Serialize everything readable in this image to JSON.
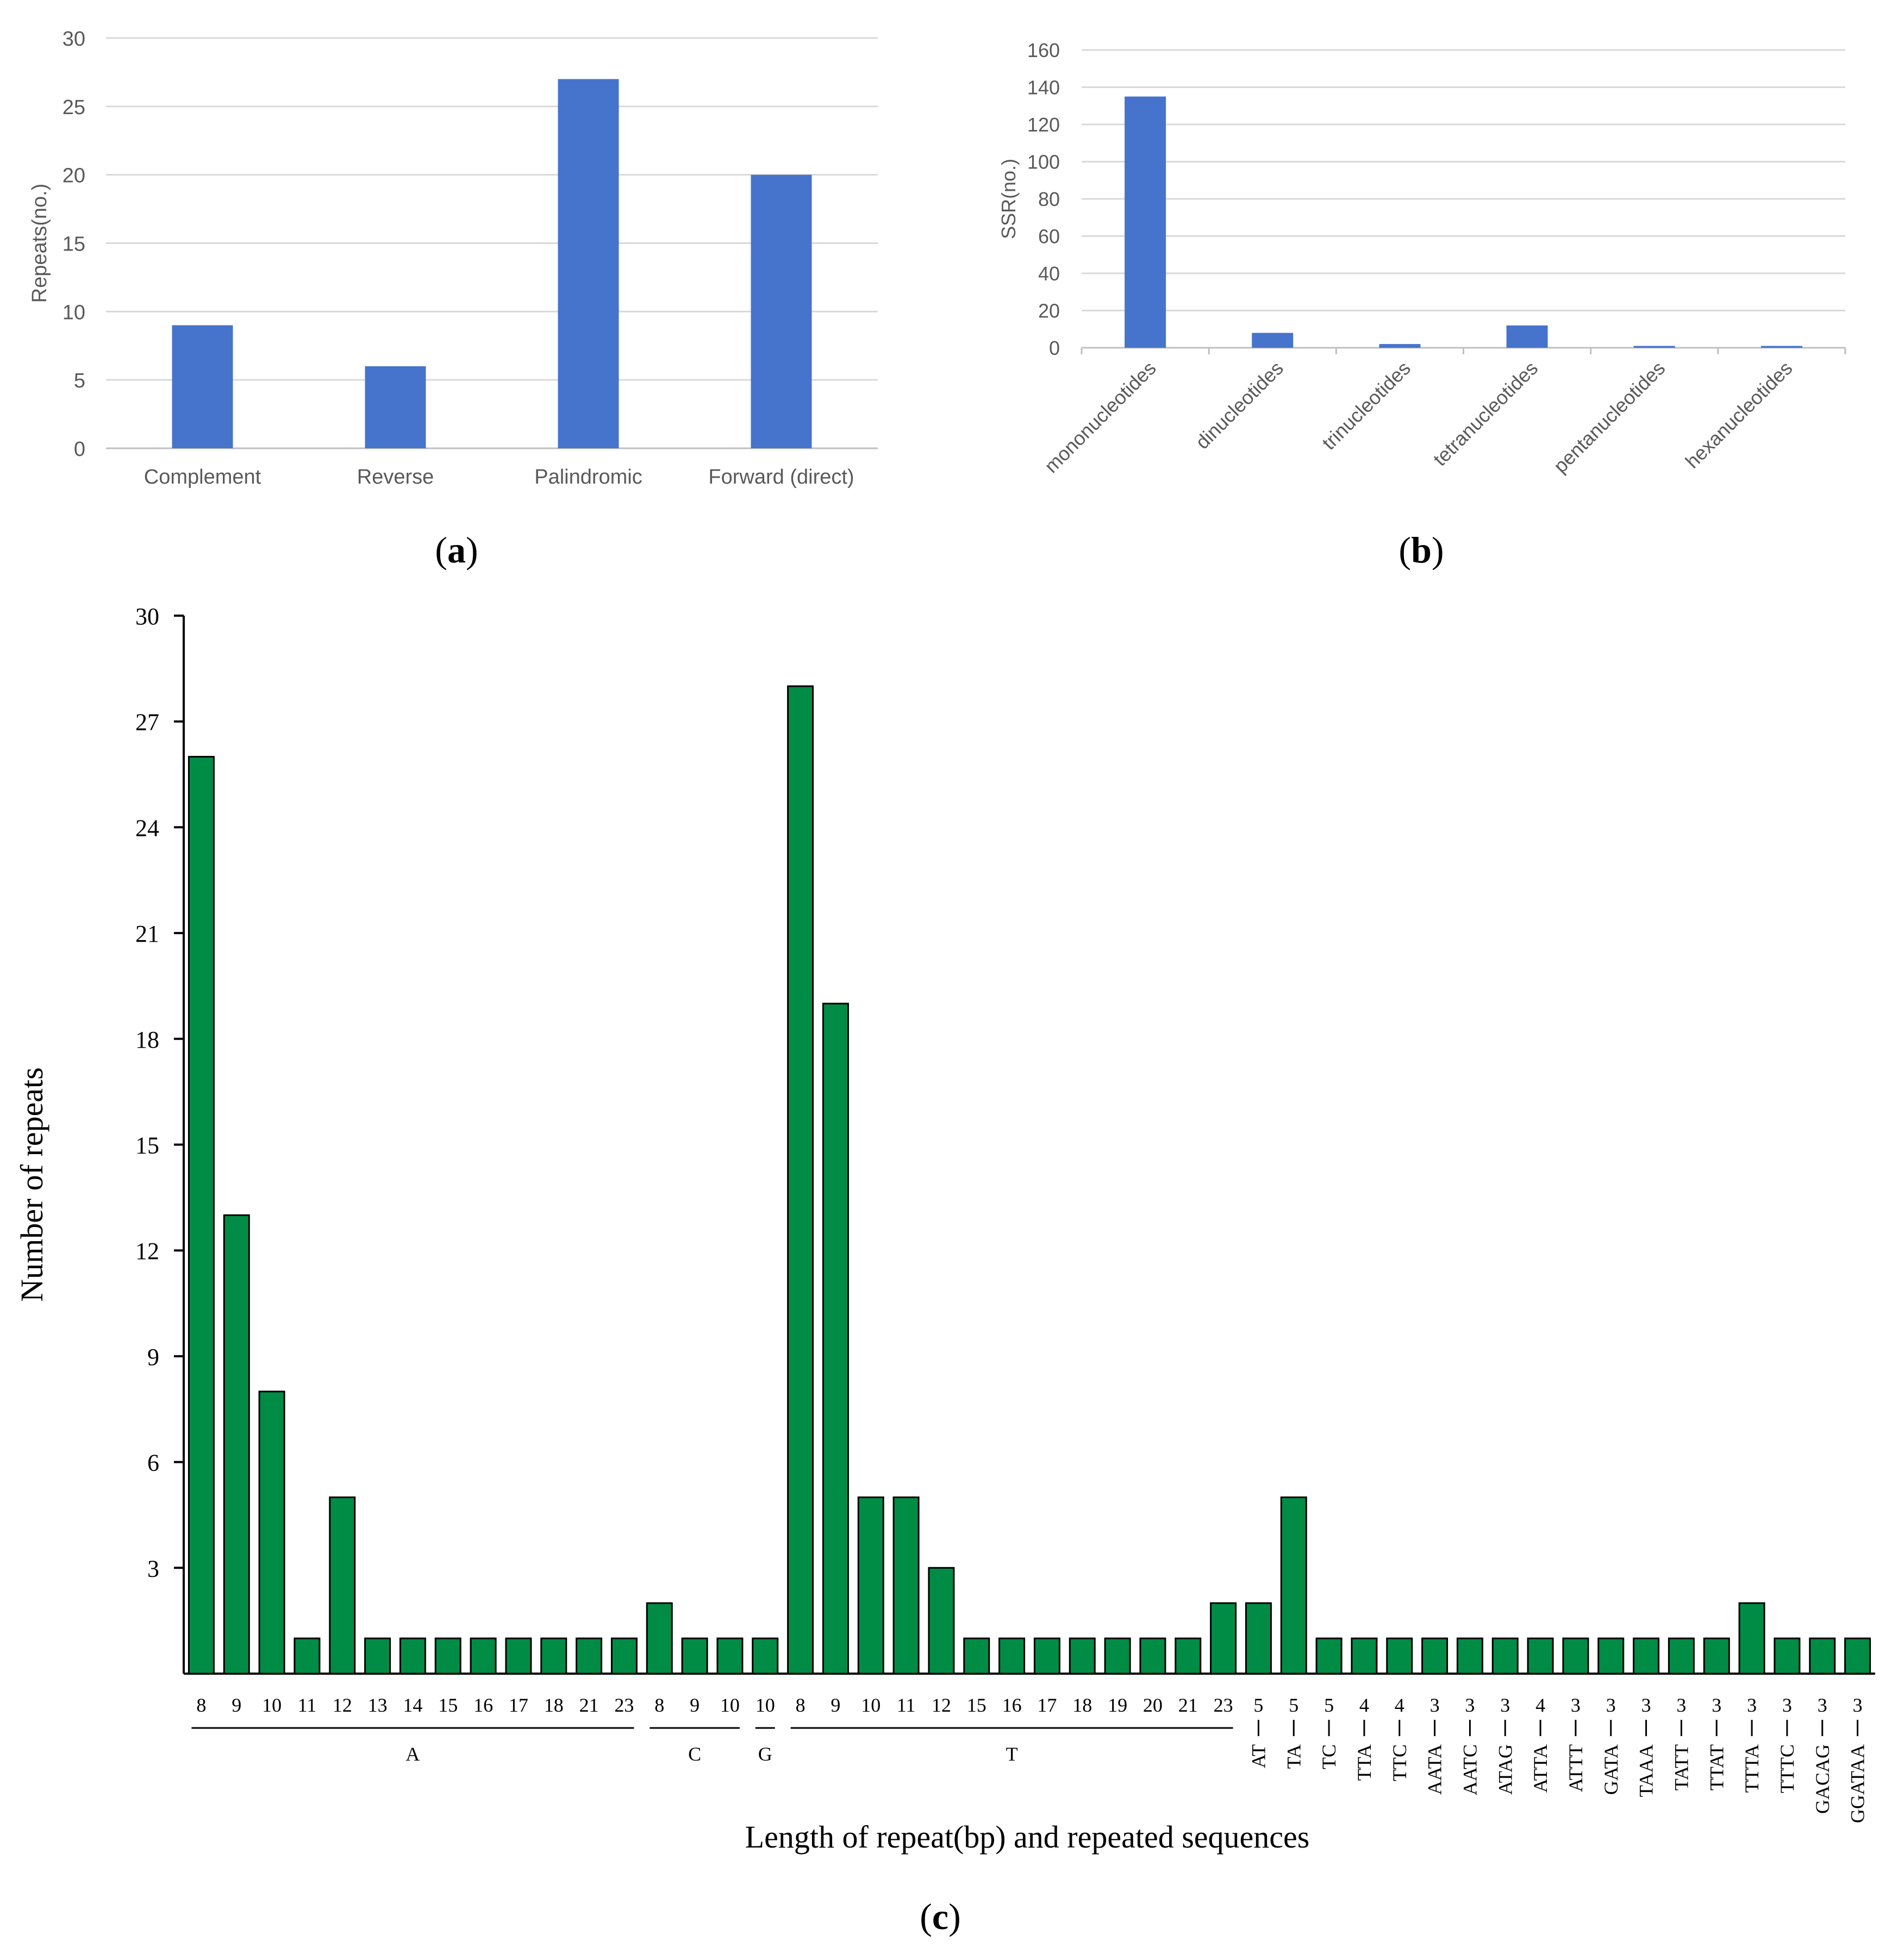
{
  "colors": {
    "blue": "#4674CC",
    "green": "#008C45",
    "grid": "#D9D9D9",
    "axis": "#000000",
    "text": "#595959"
  },
  "panel_labels": {
    "a": "a",
    "b": "b",
    "c": "c"
  },
  "chart_data": [
    {
      "id": "a",
      "type": "bar",
      "title": "",
      "xlabel": "",
      "ylabel": "Repeats(no.)",
      "ylim": [
        0,
        30
      ],
      "yticks": [
        "0",
        "5",
        "10",
        "15",
        "20",
        "25",
        "30"
      ],
      "grid": true,
      "categories": [
        "Complement",
        "Reverse",
        "Palindromic",
        "Forward (direct)"
      ],
      "values": [
        9,
        6,
        27,
        20
      ]
    },
    {
      "id": "b",
      "type": "bar",
      "title": "",
      "xlabel": "",
      "ylabel": "SSR(no.)",
      "ylim": [
        0,
        160
      ],
      "yticks": [
        "0",
        "20",
        "40",
        "60",
        "80",
        "100",
        "120",
        "140",
        "160"
      ],
      "grid": true,
      "categories": [
        "mononucleotides",
        "dinucleotides",
        "trinucleotides",
        "tetranucleotides",
        "pentanucleotides",
        "hexanucleotides"
      ],
      "values": [
        135,
        8,
        2,
        12,
        1,
        1
      ]
    },
    {
      "id": "c",
      "type": "bar",
      "title": "",
      "xlabel": "Length of repeat(bp) and repeated sequences",
      "ylabel": "Number of repeats",
      "ylim": [
        0,
        30
      ],
      "yticks": [
        "0",
        "3",
        "6",
        "9",
        "12",
        "15",
        "18",
        "21",
        "24",
        "27",
        "30"
      ],
      "grid": false,
      "categories": [
        "8",
        "9",
        "10",
        "11",
        "12",
        "13",
        "14",
        "15",
        "16",
        "17",
        "18",
        "21",
        "23",
        "8",
        "9",
        "10",
        "10",
        "8",
        "9",
        "10",
        "11",
        "12",
        "15",
        "16",
        "17",
        "18",
        "19",
        "20",
        "21",
        "23",
        "5",
        "5",
        "5",
        "4",
        "4",
        "3",
        "3",
        "3",
        "4",
        "3",
        "3",
        "3",
        "3",
        "3",
        "3",
        "3",
        "3",
        "3"
      ],
      "values": [
        26,
        13,
        8,
        1,
        5,
        1,
        1,
        1,
        1,
        1,
        1,
        1,
        1,
        2,
        1,
        1,
        1,
        28,
        19,
        5,
        5,
        3,
        1,
        1,
        1,
        1,
        1,
        1,
        1,
        2,
        2,
        5,
        1,
        1,
        1,
        1,
        1,
        1,
        1,
        1,
        1,
        1,
        1,
        1,
        2,
        1,
        1,
        1
      ],
      "groups": [
        {
          "label": "A",
          "start": 0,
          "end": 12
        },
        {
          "label": "C",
          "start": 13,
          "end": 15
        },
        {
          "label": "G",
          "start": 16,
          "end": 16
        },
        {
          "label": "T",
          "start": 17,
          "end": 29
        }
      ],
      "motifs": [
        {
          "label": "AT",
          "index": 30
        },
        {
          "label": "TA",
          "index": 31
        },
        {
          "label": "TC",
          "index": 32
        },
        {
          "label": "TTA",
          "index": 33
        },
        {
          "label": "TTC",
          "index": 34
        },
        {
          "label": "AATA",
          "index": 35
        },
        {
          "label": "AATC",
          "index": 36
        },
        {
          "label": "ATAG",
          "index": 37
        },
        {
          "label": "ATTA",
          "index": 38
        },
        {
          "label": "ATTT",
          "index": 39
        },
        {
          "label": "GATA",
          "index": 40
        },
        {
          "label": "TAAA",
          "index": 41
        },
        {
          "label": "TATT",
          "index": 42
        },
        {
          "label": "TTAT",
          "index": 43
        },
        {
          "label": "TTTA",
          "index": 44
        },
        {
          "label": "TTTC",
          "index": 45
        },
        {
          "label": "GACAG",
          "index": 46
        },
        {
          "label": "GGATAA",
          "index": 47
        }
      ]
    }
  ]
}
